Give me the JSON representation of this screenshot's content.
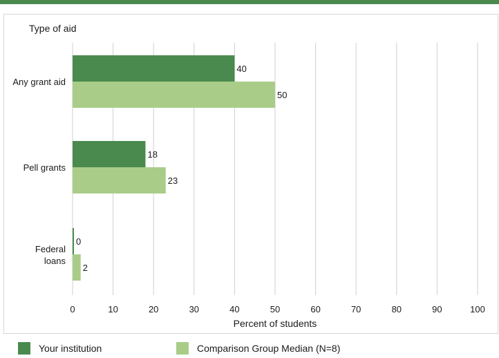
{
  "colors": {
    "accent_rule": "#4a8a4e",
    "your_institution": "#4a8a4e",
    "comparison": "#a9cd88",
    "gridline": "#cfcfcf"
  },
  "chart_data": {
    "type": "bar",
    "orientation": "horizontal",
    "title": "Type of aid",
    "xlabel": "Percent of students",
    "xlim": [
      0,
      100
    ],
    "x_ticks": [
      0,
      10,
      20,
      30,
      40,
      50,
      60,
      70,
      80,
      90,
      100
    ],
    "grid": true,
    "legend_position": "bottom",
    "categories": [
      [
        "Any grant aid"
      ],
      [
        "Pell grants"
      ],
      [
        "Federal",
        "loans"
      ]
    ],
    "series": [
      {
        "name": "Your institution",
        "color": "#4a8a4e",
        "values": [
          40,
          18,
          0
        ]
      },
      {
        "name": "Comparison Group Median (N=8)",
        "color": "#a9cd88",
        "values": [
          50,
          23,
          2
        ]
      }
    ]
  }
}
